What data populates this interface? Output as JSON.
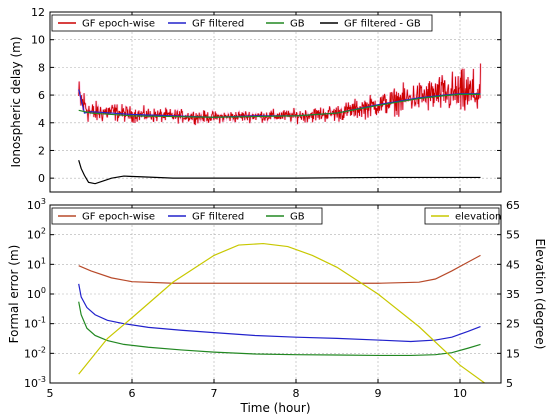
{
  "chart_data": [
    {
      "type": "line",
      "ylabel": "Ionospheric delay (m)",
      "xlim": [
        5,
        10.5
      ],
      "ylim": [
        -1,
        12
      ],
      "x_ticks": [
        5,
        6,
        7,
        8,
        9,
        10
      ],
      "x_tick_labels": [
        "",
        "",
        "",
        "",
        "",
        ""
      ],
      "y_ticks": [
        0,
        2,
        4,
        6,
        8,
        10,
        12
      ],
      "y_tick_labels": [
        "0",
        "2",
        "4",
        "6",
        "8",
        "10",
        "12"
      ],
      "grid": true,
      "legend_position": "top",
      "series": [
        {
          "name": "GF epoch-wise",
          "color": "#cc0000",
          "style": "noisy",
          "x": [
            5.35,
            5.5,
            5.75,
            6.0,
            6.5,
            7.0,
            7.5,
            8.0,
            8.5,
            9.0,
            9.5,
            9.8,
            10.0,
            10.25
          ],
          "y": [
            5.8,
            4.7,
            4.8,
            4.6,
            4.5,
            4.4,
            4.5,
            4.5,
            4.7,
            5.3,
            5.9,
            6.1,
            6.1,
            6.1
          ],
          "spread": [
            2.2,
            1.2,
            1.0,
            0.8,
            0.7,
            0.6,
            0.6,
            0.7,
            0.9,
            1.2,
            1.6,
            2.0,
            2.4,
            2.6
          ]
        },
        {
          "name": "GF filtered",
          "color": "#2222cc",
          "x": [
            5.35,
            5.42,
            5.5,
            5.75,
            6.0,
            6.5,
            7.0,
            7.5,
            8.0,
            8.5,
            9.0,
            9.5,
            9.8,
            10.0,
            10.25
          ],
          "y": [
            6.4,
            4.7,
            4.8,
            4.7,
            4.6,
            4.5,
            4.4,
            4.5,
            4.5,
            4.7,
            5.3,
            5.8,
            6.0,
            6.1,
            6.1
          ]
        },
        {
          "name": "GB",
          "color": "#228822",
          "x": [
            5.35,
            5.5,
            5.75,
            6.0,
            6.5,
            7.0,
            7.5,
            8.0,
            8.5,
            9.0,
            9.5,
            9.8,
            10.0,
            10.25
          ],
          "y": [
            4.9,
            4.7,
            4.6,
            4.5,
            4.45,
            4.4,
            4.45,
            4.5,
            4.7,
            5.25,
            5.75,
            5.95,
            6.05,
            6.05
          ]
        },
        {
          "name": "GF filtered - GB",
          "color": "#000000",
          "x": [
            5.35,
            5.38,
            5.42,
            5.47,
            5.55,
            5.65,
            5.75,
            5.9,
            6.1,
            6.5,
            7.0,
            8.0,
            9.0,
            10.0,
            10.25
          ],
          "y": [
            1.3,
            0.7,
            0.2,
            -0.3,
            -0.4,
            -0.2,
            0.0,
            0.15,
            0.1,
            0.0,
            0.0,
            0.0,
            0.05,
            0.05,
            0.05
          ]
        }
      ]
    },
    {
      "type": "line",
      "xlabel": "Time (hour)",
      "ylabel": "Formal error (m)",
      "y2label": "Elevation (degree)",
      "xlim": [
        5,
        10.5
      ],
      "ylim": [
        0.001,
        1000
      ],
      "yscale": "log",
      "y2lim": [
        5,
        65
      ],
      "x_ticks": [
        5,
        6,
        7,
        8,
        9,
        10
      ],
      "x_tick_labels": [
        "5",
        "6",
        "7",
        "8",
        "9",
        "10"
      ],
      "y_ticks": [
        0.001,
        0.01,
        0.1,
        1,
        10,
        100,
        1000
      ],
      "y_tick_labels": [
        {
          "base": "10",
          "exp": "-3"
        },
        {
          "base": "10",
          "exp": "-2"
        },
        {
          "base": "10",
          "exp": "-1"
        },
        {
          "base": "10",
          "exp": "0"
        },
        {
          "base": "10",
          "exp": "1"
        },
        {
          "base": "10",
          "exp": "2"
        },
        {
          "base": "10",
          "exp": "3"
        }
      ],
      "y2_ticks": [
        5,
        15,
        25,
        35,
        45,
        55,
        65
      ],
      "y2_tick_labels": [
        "5",
        "15",
        "25",
        "35",
        "45",
        "55",
        "65"
      ],
      "grid": true,
      "legend_position": "top",
      "series": [
        {
          "name": "GF epoch-wise",
          "color": "#b84a2a",
          "axis": "left",
          "x": [
            5.35,
            5.5,
            5.75,
            6.0,
            6.5,
            7.0,
            8.0,
            9.0,
            9.5,
            9.7,
            9.9,
            10.1,
            10.25
          ],
          "y": [
            9,
            6,
            3.5,
            2.6,
            2.3,
            2.3,
            2.3,
            2.3,
            2.5,
            3.2,
            6,
            12,
            20
          ]
        },
        {
          "name": "GF filtered",
          "color": "#2222cc",
          "axis": "left",
          "x": [
            5.35,
            5.38,
            5.45,
            5.55,
            5.7,
            5.9,
            6.2,
            6.6,
            7.0,
            7.5,
            8.0,
            8.5,
            9.0,
            9.4,
            9.7,
            9.9,
            10.1,
            10.25
          ],
          "y": [
            2.2,
            0.8,
            0.35,
            0.2,
            0.13,
            0.1,
            0.075,
            0.06,
            0.05,
            0.04,
            0.035,
            0.032,
            0.028,
            0.025,
            0.028,
            0.035,
            0.055,
            0.08
          ]
        },
        {
          "name": "GB",
          "color": "#228822",
          "axis": "left",
          "x": [
            5.35,
            5.38,
            5.45,
            5.55,
            5.7,
            5.9,
            6.2,
            6.6,
            7.0,
            7.5,
            8.0,
            8.5,
            9.0,
            9.4,
            9.7,
            9.9,
            10.1,
            10.25
          ],
          "y": [
            0.55,
            0.2,
            0.07,
            0.04,
            0.027,
            0.02,
            0.016,
            0.013,
            0.011,
            0.0095,
            0.009,
            0.0088,
            0.0085,
            0.0085,
            0.009,
            0.0105,
            0.015,
            0.02
          ]
        },
        {
          "name": "elevation",
          "color": "#c8c800",
          "axis": "right",
          "x": [
            5.35,
            5.7,
            6.0,
            6.5,
            7.0,
            7.3,
            7.6,
            7.9,
            8.2,
            8.5,
            9.0,
            9.5,
            10.0,
            10.3
          ],
          "y": [
            8,
            20,
            27,
            39,
            48,
            51.5,
            52,
            51,
            48,
            44,
            35,
            24,
            11,
            5
          ]
        }
      ]
    }
  ]
}
